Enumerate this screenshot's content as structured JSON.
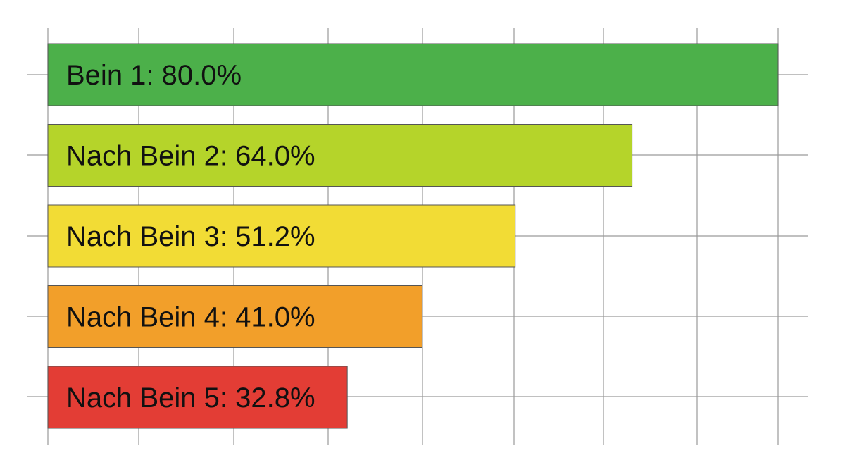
{
  "chart_data": {
    "type": "bar",
    "orientation": "horizontal",
    "categories": [
      "Bein 1",
      "Nach Bein 2",
      "Nach Bein 3",
      "Nach Bein 4",
      "Nach Bein 5"
    ],
    "values": [
      80.0,
      64.0,
      51.2,
      41.0,
      32.8
    ],
    "labels": [
      "Bein 1: 80.0%",
      "Nach Bein 2: 64.0%",
      "Nach Bein 3: 51.2%",
      "Nach Bein 4: 41.0%",
      "Nach Bein 5: 32.8%"
    ],
    "colors": [
      "#4cb04a",
      "#b5d42a",
      "#f2dc35",
      "#f29f2a",
      "#e33d35"
    ],
    "title": "",
    "xlabel": "",
    "ylabel": "",
    "xlim": [
      0,
      80
    ],
    "grid": true,
    "legend": "none"
  }
}
